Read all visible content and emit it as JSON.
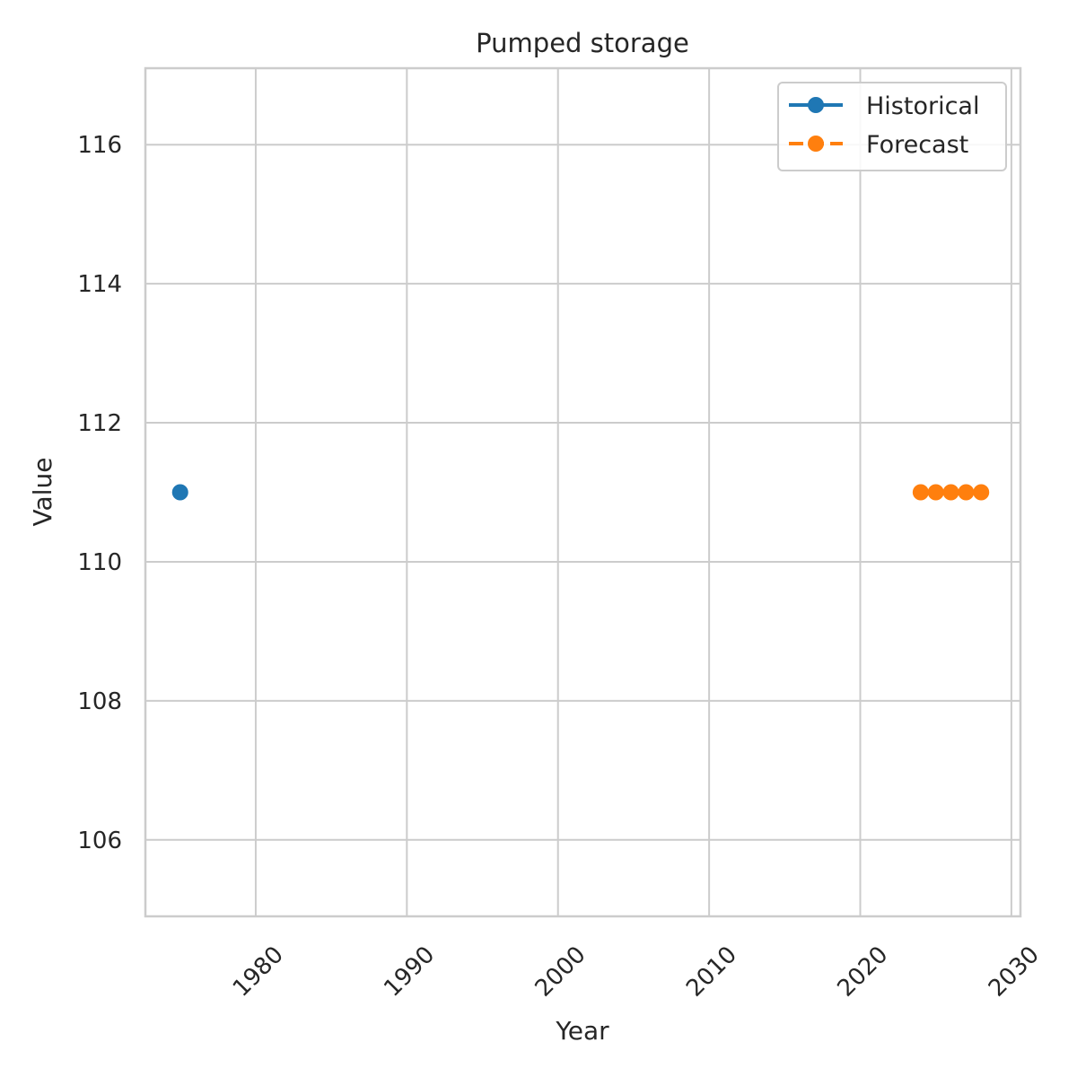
{
  "chart_data": {
    "type": "line",
    "title": "Pumped storage",
    "xlabel": "Year",
    "ylabel": "Value",
    "xlim": [
      1972.7,
      2030.6
    ],
    "ylim": [
      104.9,
      117.1
    ],
    "xticks": [
      1980,
      1990,
      2000,
      2010,
      2020,
      2030
    ],
    "yticks": [
      106,
      108,
      110,
      112,
      114,
      116
    ],
    "grid": true,
    "legend_position": "top-right",
    "series": [
      {
        "name": "Historical",
        "color": "#1f77b4",
        "line_style": "solid",
        "marker": "circle",
        "points": [
          {
            "x": 1975,
            "y": 111
          }
        ]
      },
      {
        "name": "Forecast",
        "color": "#ff7f0e",
        "line_style": "dashed",
        "marker": "circle",
        "points": [
          {
            "x": 2024,
            "y": 111
          },
          {
            "x": 2025,
            "y": 111
          },
          {
            "x": 2026,
            "y": 111
          },
          {
            "x": 2027,
            "y": 111
          },
          {
            "x": 2028,
            "y": 111
          }
        ]
      }
    ]
  }
}
